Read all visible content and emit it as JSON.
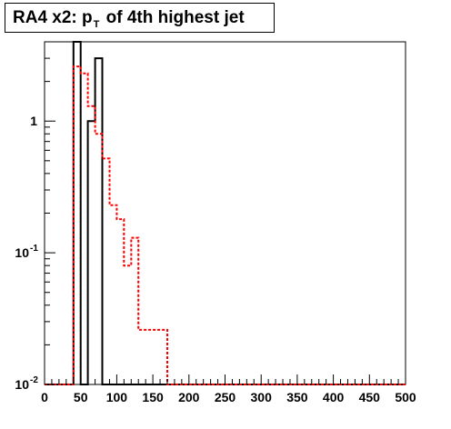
{
  "title": {
    "prefix": "RA4 x2: p",
    "subscript": "T",
    "suffix": " of 4th highest jet"
  },
  "chart_data": {
    "type": "histogram",
    "title": "RA4 x2: pT of 4th highest jet",
    "xlabel": "",
    "ylabel": "",
    "xlim": [
      0,
      500
    ],
    "ylim": [
      0.01,
      4
    ],
    "yscale": "log",
    "grid": false,
    "x_tick_labels": [
      "0",
      "50",
      "100",
      "150",
      "200",
      "250",
      "300",
      "350",
      "400",
      "450",
      "500"
    ],
    "y_tick_labels": [
      {
        "value": 1,
        "label": "1"
      },
      {
        "value": 0.1,
        "label": "10",
        "exp": "-1"
      },
      {
        "value": 0.01,
        "label": "10",
        "exp": "-2"
      }
    ],
    "bin_edges": [
      0,
      10,
      20,
      30,
      40,
      50,
      60,
      70,
      80,
      90,
      100,
      110,
      120,
      130,
      140,
      150,
      160,
      170,
      180,
      190,
      200,
      210,
      220,
      230,
      240,
      250,
      260,
      270,
      280,
      290,
      300,
      310,
      320,
      330,
      340,
      350,
      360,
      370,
      380,
      390,
      400,
      410,
      420,
      430,
      440,
      450,
      460,
      470,
      480,
      490,
      500
    ],
    "series": [
      {
        "color": "#000000",
        "style": "solid",
        "values": [
          0.01,
          0.01,
          0.01,
          0.01,
          4.2,
          0.01,
          1.0,
          3.0,
          0.01,
          0.01,
          0.01,
          0.01,
          0.01,
          0.01,
          0.01,
          0.01,
          0.01,
          0.01,
          0.01,
          0.01,
          0.01,
          0.01,
          0.01,
          0.01,
          0.01,
          0.01,
          0.01,
          0.01,
          0.01,
          0.01,
          0.01,
          0.01,
          0.01,
          0.01,
          0.01,
          0.01,
          0.01,
          0.01,
          0.01,
          0.01,
          0.01,
          0.01,
          0.01,
          0.01,
          0.01,
          0.01,
          0.01,
          0.01,
          0.01,
          0.01
        ]
      },
      {
        "color": "#ff0000",
        "style": "dotted",
        "values": [
          0.01,
          0.01,
          0.01,
          0.01,
          2.6,
          2.3,
          1.3,
          0.8,
          0.52,
          0.23,
          0.18,
          0.08,
          0.13,
          0.026,
          0.026,
          0.026,
          0.026,
          0.01,
          0.01,
          0.01,
          0.01,
          0.01,
          0.01,
          0.01,
          0.01,
          0.01,
          0.01,
          0.01,
          0.01,
          0.01,
          0.01,
          0.01,
          0.01,
          0.01,
          0.01,
          0.01,
          0.01,
          0.01,
          0.01,
          0.01,
          0.01,
          0.01,
          0.01,
          0.01,
          0.01,
          0.01,
          0.01,
          0.01,
          0.01,
          0.01
        ]
      }
    ]
  }
}
